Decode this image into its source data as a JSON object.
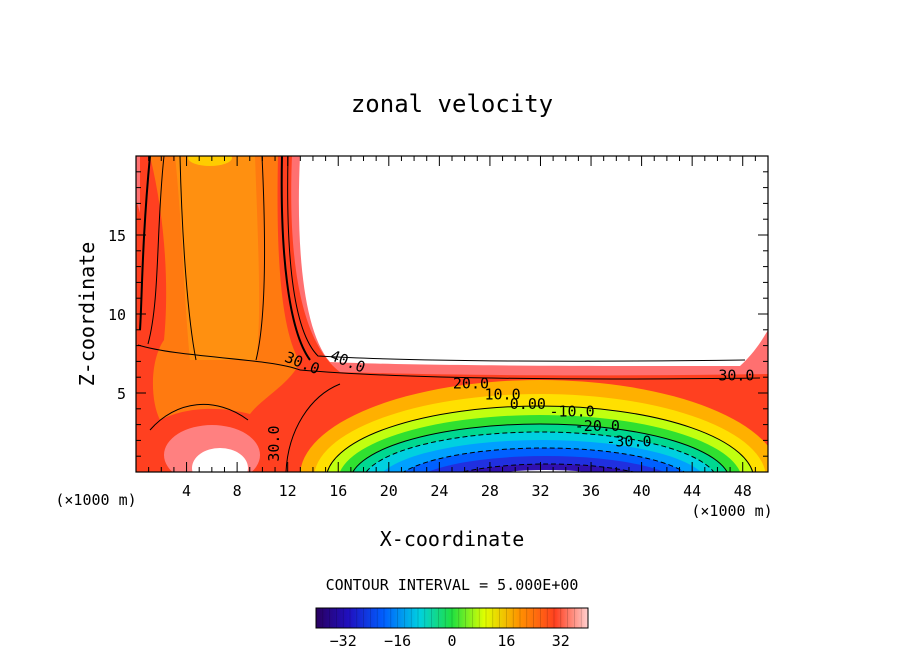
{
  "chart_data": {
    "type": "heatmap",
    "title": "zonal velocity",
    "xlabel": "X-coordinate",
    "ylabel": "Z-coordinate",
    "x_unit_left": "(×1000 m)",
    "x_unit_right": "(×1000 m)",
    "xlim": [
      0,
      50
    ],
    "ylim": [
      0,
      20
    ],
    "x_ticks": [
      4,
      8,
      12,
      16,
      20,
      24,
      28,
      32,
      36,
      40,
      44,
      48
    ],
    "y_ticks": [
      5,
      10,
      15
    ],
    "contour_interval_text": "CONTOUR INTERVAL = 5.000E+00",
    "colorbar": {
      "range": [
        -40,
        40
      ],
      "ticks": [
        -32,
        -16,
        0,
        16,
        32
      ]
    },
    "contour_labels": [
      {
        "text": "40.0",
        "x": 16.6,
        "z": 6.7
      },
      {
        "text": "30.0",
        "x": 13.0,
        "z": 6.6
      },
      {
        "text": "30.0",
        "x": 47.5,
        "z": 5.8
      },
      {
        "text": "20.0",
        "x": 26.5,
        "z": 5.3
      },
      {
        "text": "10.0",
        "x": 29.0,
        "z": 4.6
      },
      {
        "text": "0.00",
        "x": 31.0,
        "z": 4.0
      },
      {
        "text": "-10.0",
        "x": 34.5,
        "z": 3.5
      },
      {
        "text": "-20.0",
        "x": 36.5,
        "z": 2.6
      },
      {
        "text": "-30.0",
        "x": 39.0,
        "z": 1.6
      },
      {
        "text": "30.0",
        "x": 11.3,
        "z": 1.8
      }
    ],
    "colors": {
      "min": "#2a0060",
      "zero": "#20e040",
      "max": "#ff6060",
      "peak": "#ffd0d0"
    }
  }
}
